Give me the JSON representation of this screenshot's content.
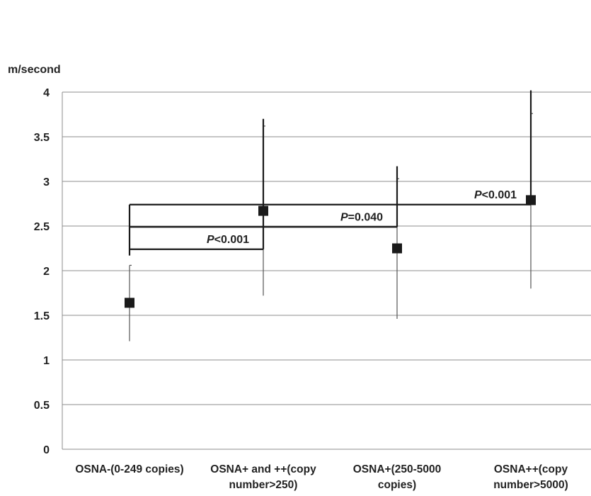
{
  "chart_data": {
    "type": "scatter",
    "ylabel": "m/second",
    "ylim": [
      0,
      4
    ],
    "yticks": [
      "0",
      "0.5",
      "1",
      "1.5",
      "2",
      "2.5",
      "3",
      "3.5",
      "4"
    ],
    "ytick_values": [
      0,
      0.5,
      1,
      1.5,
      2,
      2.5,
      3,
      3.5,
      4
    ],
    "grid": true,
    "categories": [
      [
        "OSNA-(0-249 copies)"
      ],
      [
        "OSNA+ and ++(copy",
        "number>250)"
      ],
      [
        "OSNA+(250-5000",
        "copies)"
      ],
      [
        "OSNA++(copy",
        "number>5000)"
      ]
    ],
    "series": [
      {
        "marker": "square",
        "values": [
          1.64,
          2.67,
          2.25,
          2.79
        ],
        "error_low": [
          1.21,
          1.72,
          1.46,
          1.8
        ],
        "error_high": [
          2.06,
          3.62,
          3.03,
          3.76
        ]
      }
    ],
    "comparisons": [
      {
        "from": 0,
        "to": 1,
        "level": 2.24,
        "p_symbol": "P",
        "p_text": "<0.001",
        "end_drop_to": 3.7
      },
      {
        "from": 0,
        "to": 2,
        "level": 2.49,
        "p_symbol": "P",
        "p_text": "=0.040",
        "end_drop_to": 3.17
      },
      {
        "from": 0,
        "to": 3,
        "level": 2.74,
        "p_symbol": "P",
        "p_text": "<0.001",
        "end_drop_to": 4.02
      }
    ],
    "colors": {
      "marker": "#1a1a1a",
      "grid": "#8c8c8c",
      "axis": "#8c8c8c",
      "error_bar": "#555555",
      "bracket": "#1a1a1a"
    }
  }
}
